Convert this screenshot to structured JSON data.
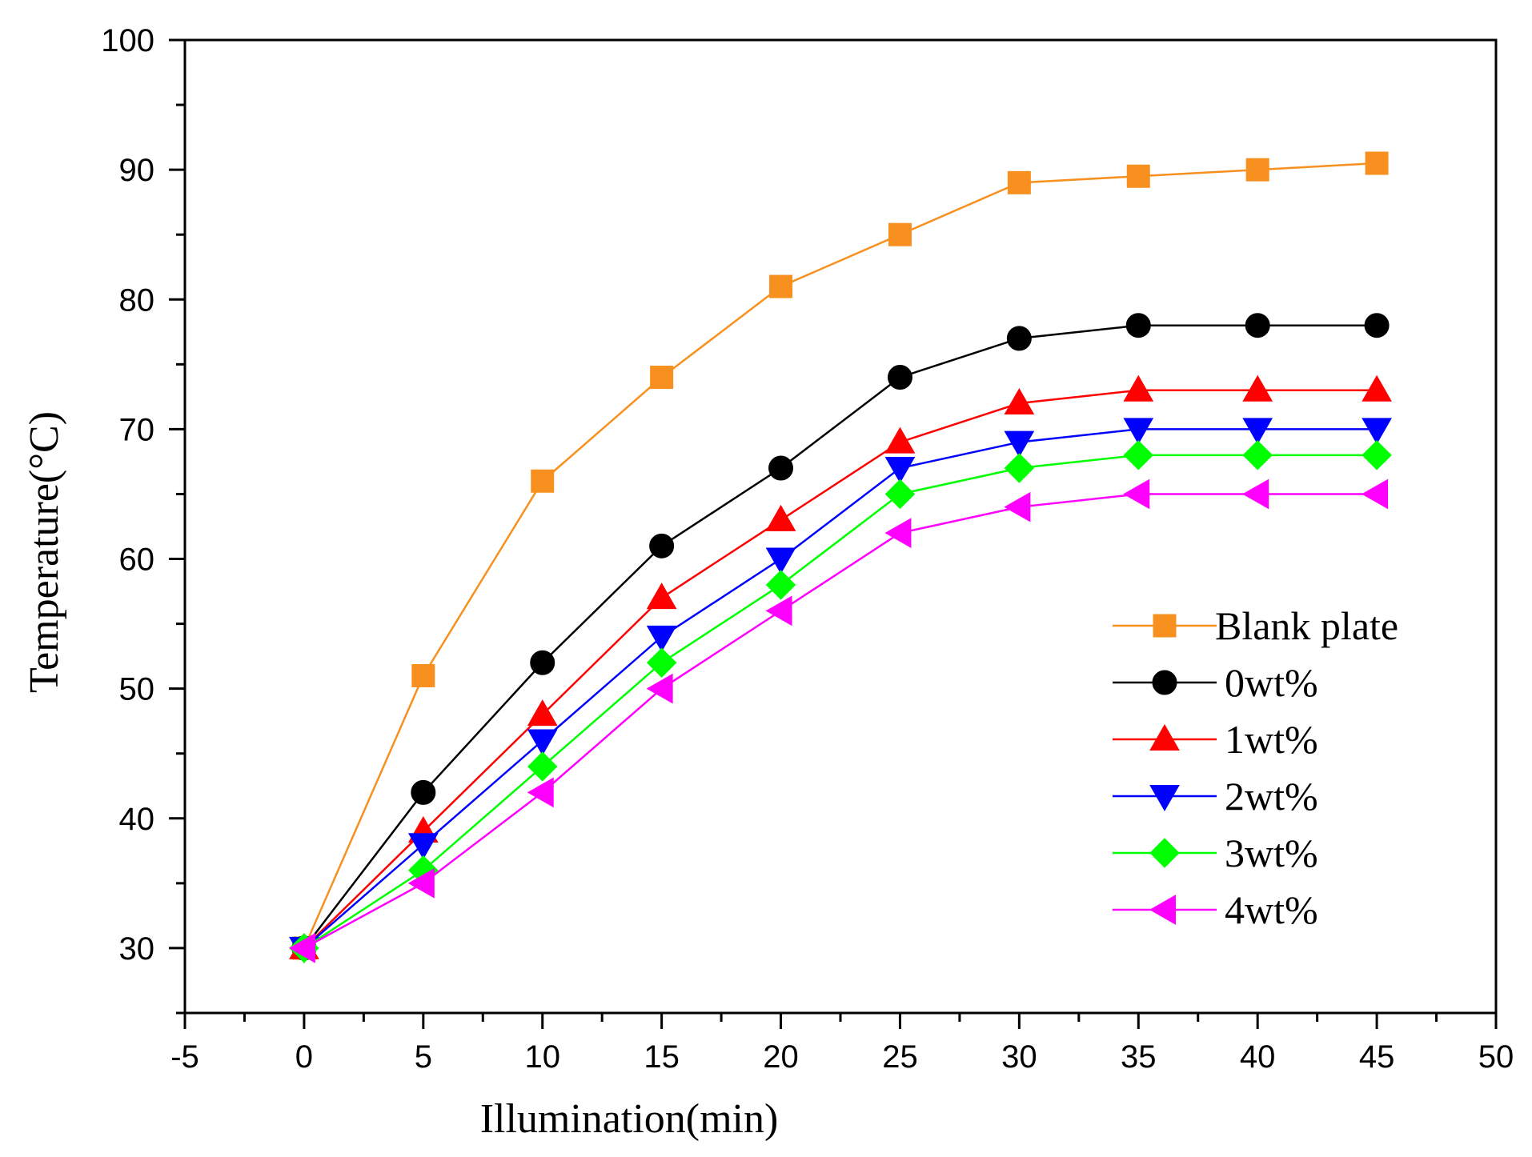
{
  "chart_data": {
    "type": "line",
    "title": "",
    "xlabel": "Illumination(min)",
    "ylabel": "Temperature(°C)",
    "xlim": [
      -5,
      50
    ],
    "ylim": [
      25,
      100
    ],
    "xticks": [
      -5,
      0,
      5,
      10,
      15,
      20,
      25,
      30,
      35,
      40,
      45,
      50
    ],
    "yticks": [
      30,
      40,
      50,
      60,
      70,
      80,
      90,
      100
    ],
    "x": [
      0,
      5,
      10,
      15,
      20,
      25,
      30,
      35,
      40,
      45
    ],
    "legend_position": "right",
    "series": [
      {
        "name": "Blank plate",
        "color": "#f7901e",
        "marker": "square",
        "values": [
          30,
          51,
          66,
          74,
          81,
          85,
          89,
          89.5,
          90,
          90.5
        ]
      },
      {
        "name": "0wt%",
        "color": "#000000",
        "marker": "circle",
        "values": [
          30,
          42,
          52,
          61,
          67,
          74,
          77,
          78,
          78,
          78
        ]
      },
      {
        "name": "1wt%",
        "color": "#ff0000",
        "marker": "triangle-up",
        "values": [
          30,
          39,
          48,
          57,
          63,
          69,
          72,
          73,
          73,
          73
        ]
      },
      {
        "name": "2wt%",
        "color": "#0000ff",
        "marker": "triangle-down",
        "values": [
          30,
          38,
          46,
          54,
          60,
          67,
          69,
          70,
          70,
          70
        ]
      },
      {
        "name": "3wt%",
        "color": "#00ff00",
        "marker": "diamond",
        "values": [
          30,
          36,
          44,
          52,
          58,
          65,
          67,
          68,
          68,
          68
        ]
      },
      {
        "name": "4wt%",
        "color": "#ff00ff",
        "marker": "triangle-left",
        "values": [
          30,
          35,
          42,
          50,
          56,
          62,
          64,
          65,
          65,
          65
        ]
      }
    ]
  }
}
